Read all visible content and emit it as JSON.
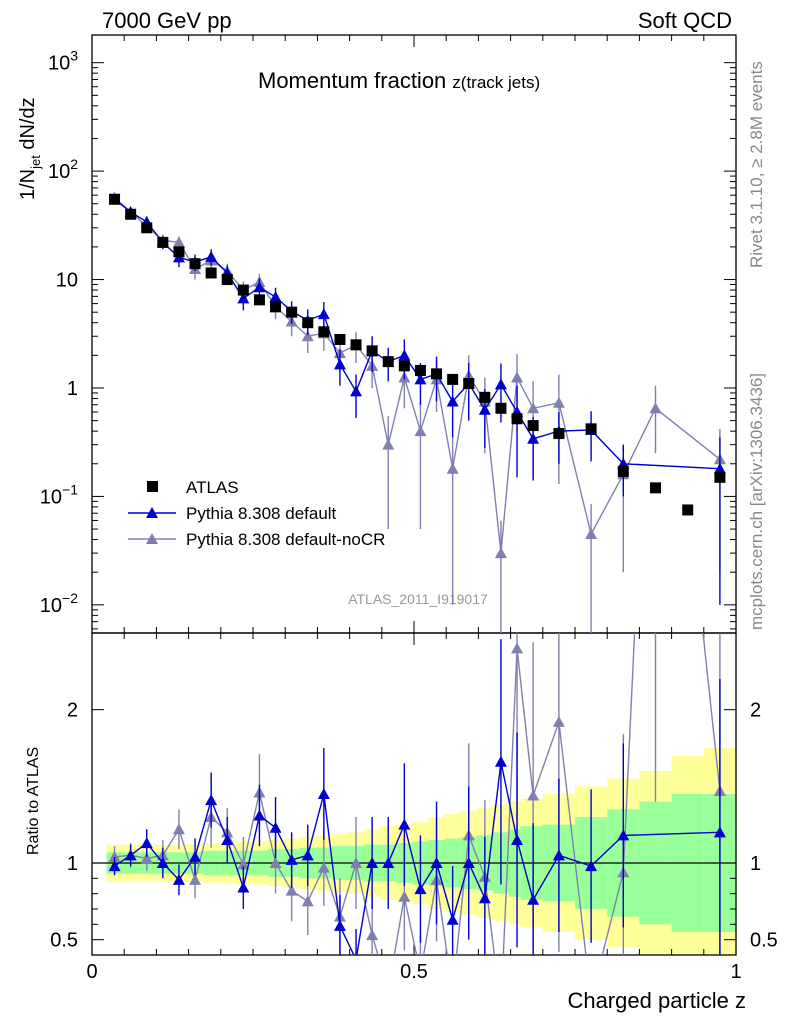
{
  "header": {
    "left": "7000 GeV pp",
    "right": "Soft QCD"
  },
  "side": {
    "top": "Rivet 3.1.10, ≥ 2.8M events",
    "bottom": "mcplots.cern.ch [arXiv:1306.3436]"
  },
  "chart_data": {
    "type": "scatter",
    "title": "Momentum fraction",
    "title_sub": "z(track jets)",
    "analysis_label": "ATLAS_2011_I919017",
    "xlabel": "Charged particle z",
    "ylabel_main": "1/N",
    "ylabel_sub": "jet",
    "ylabel_tail": " dN/dz",
    "ylabel_ratio": "Ratio to ATLAS",
    "xlim": [
      0,
      1
    ],
    "ylim_main": [
      0.0055,
      1800
    ],
    "ylim_ratio": [
      0.4,
      2.5
    ],
    "x_ticks": [
      "0",
      "0.5",
      "1"
    ],
    "x_tick_values": [
      0,
      0.5,
      1
    ],
    "y_ticks_main": [
      {
        "v": 1000,
        "base": "10",
        "exp": "3"
      },
      {
        "v": 100,
        "base": "10",
        "exp": "2"
      },
      {
        "v": 10,
        "base": "10",
        "exp": ""
      },
      {
        "v": 1,
        "base": "1",
        "exp": ""
      },
      {
        "v": 0.1,
        "base": "10",
        "exp": "−1"
      },
      {
        "v": 0.01,
        "base": "10",
        "exp": "−2"
      }
    ],
    "y_ticks_ratio": [
      {
        "v": 2,
        "label": "2"
      },
      {
        "v": 1,
        "label": "1"
      },
      {
        "v": 0.5,
        "label": "0.5"
      }
    ],
    "legend": [
      {
        "name": "ATLAS",
        "style": "data"
      },
      {
        "name": "Pythia 8.308 default",
        "style": "default"
      },
      {
        "name": "Pythia 8.308 default-noCR",
        "style": "nocr"
      }
    ],
    "colors": {
      "data": "#000000",
      "default": "#0000cc",
      "nocr": "#8080b0",
      "band_inner": "#99ff99",
      "band_outer": "#ffff99"
    },
    "atlas": {
      "x": [
        0.035,
        0.06,
        0.085,
        0.11,
        0.135,
        0.16,
        0.185,
        0.21,
        0.235,
        0.26,
        0.285,
        0.31,
        0.335,
        0.36,
        0.385,
        0.41,
        0.435,
        0.46,
        0.485,
        0.51,
        0.535,
        0.56,
        0.585,
        0.61,
        0.635,
        0.66,
        0.685,
        0.725,
        0.775,
        0.825,
        0.875,
        0.925,
        0.975
      ],
      "y": [
        55,
        40,
        30,
        22,
        18,
        14,
        11.5,
        10,
        8,
        6.5,
        5.6,
        5,
        4,
        3.3,
        2.8,
        2.5,
        2.2,
        1.75,
        1.6,
        1.45,
        1.35,
        1.2,
        1.1,
        0.82,
        0.65,
        0.52,
        0.45,
        0.38,
        0.42,
        0.17,
        0.12,
        0.075,
        0.15
      ]
    },
    "default": {
      "x": [
        0.035,
        0.06,
        0.085,
        0.11,
        0.135,
        0.16,
        0.185,
        0.21,
        0.235,
        0.26,
        0.285,
        0.31,
        0.335,
        0.36,
        0.385,
        0.41,
        0.435,
        0.46,
        0.485,
        0.51,
        0.535,
        0.56,
        0.585,
        0.61,
        0.635,
        0.66,
        0.685,
        0.725,
        0.775,
        0.825,
        0.975
      ],
      "y": [
        55,
        42,
        34,
        22,
        16,
        14.5,
        16.2,
        11.5,
        6.7,
        8.5,
        6.9,
        5.1,
        4.2,
        4.8,
        1.65,
        0.93,
        2.2,
        1.75,
        2.0,
        1.2,
        1.35,
        0.75,
        1.1,
        0.63,
        1.08,
        0.6,
        0.34,
        0.4,
        0.41,
        0.2,
        0.18
      ],
      "yerr": [
        5,
        4,
        4,
        3,
        3,
        2.5,
        2.8,
        2,
        1.5,
        1.8,
        1.5,
        1.2,
        1.1,
        1.4,
        0.6,
        0.4,
        0.8,
        0.6,
        0.8,
        0.5,
        0.6,
        0.4,
        0.6,
        0.35,
        0.6,
        0.45,
        0.2,
        0.2,
        0.2,
        0.1,
        0.17
      ]
    },
    "nocr": {
      "x": [
        0.035,
        0.06,
        0.085,
        0.11,
        0.135,
        0.16,
        0.185,
        0.21,
        0.235,
        0.26,
        0.285,
        0.31,
        0.335,
        0.36,
        0.385,
        0.41,
        0.435,
        0.46,
        0.485,
        0.51,
        0.535,
        0.56,
        0.585,
        0.61,
        0.635,
        0.66,
        0.685,
        0.725,
        0.775,
        0.825,
        0.875,
        0.975
      ],
      "y": [
        57,
        42,
        31,
        23,
        22,
        12.5,
        15,
        12,
        8,
        9.5,
        5.6,
        4.1,
        3,
        3.2,
        2.1,
        2.5,
        1.6,
        0.3,
        1.25,
        0.4,
        1.2,
        0.18,
        1.3,
        0.75,
        0.03,
        1.25,
        0.65,
        0.73,
        0.045,
        0.16,
        0.65,
        0.22
      ],
      "yerr": [
        5,
        4,
        3,
        3,
        3,
        2.5,
        2.5,
        2,
        1.6,
        1.8,
        1.3,
        1.1,
        0.9,
        1,
        0.7,
        0.8,
        0.6,
        0.25,
        0.6,
        0.35,
        0.6,
        0.17,
        0.7,
        0.5,
        0.03,
        0.8,
        0.5,
        0.6,
        0.04,
        0.14,
        0.4,
        0.2
      ]
    },
    "ratio_default": [
      0.98,
      1.05,
      1.13,
      1.0,
      0.89,
      1.04,
      1.41,
      1.15,
      0.84,
      1.31,
      1.23,
      1.02,
      1.05,
      1.45,
      0.59,
      0.37,
      1.0,
      1.0,
      1.25,
      0.83,
      1.0,
      0.63,
      1.0,
      0.77,
      1.66,
      1.15,
      0.76,
      1.05,
      0.98,
      1.18,
      1.2
    ],
    "ratio_default_err": [
      0.06,
      0.07,
      0.09,
      0.1,
      0.1,
      0.12,
      0.18,
      0.15,
      0.14,
      0.2,
      0.2,
      0.18,
      0.2,
      0.3,
      0.2,
      0.2,
      0.3,
      0.3,
      0.4,
      0.35,
      0.4,
      0.35,
      0.5,
      0.4,
      0.8,
      0.7,
      0.5,
      0.5,
      0.5,
      0.6,
      1.0
    ],
    "ratio_nocr": [
      1.04,
      1.05,
      1.03,
      1.05,
      1.22,
      0.89,
      1.3,
      1.2,
      0.99,
      1.46,
      1.0,
      0.82,
      0.75,
      0.97,
      0.65,
      1.0,
      0.53,
      0.17,
      0.78,
      0.28,
      0.89,
      0.15,
      1.18,
      0.91,
      0.05,
      2.4,
      1.44,
      1.92,
      0.11,
      0.94,
      5.4,
      1.47
    ],
    "ratio_nocr_err": [
      0.07,
      0.08,
      0.08,
      0.1,
      0.13,
      0.12,
      0.2,
      0.16,
      0.18,
      0.25,
      0.2,
      0.2,
      0.22,
      0.25,
      0.25,
      0.3,
      0.25,
      0.15,
      0.35,
      0.25,
      0.4,
      0.14,
      0.6,
      0.5,
      0.05,
      1.4,
      1.0,
      1.5,
      0.1,
      0.9,
      4.0,
      1.3
    ],
    "band_inner": [
      0.07,
      0.07,
      0.07,
      0.07,
      0.07,
      0.07,
      0.08,
      0.08,
      0.08,
      0.08,
      0.09,
      0.09,
      0.1,
      0.1,
      0.11,
      0.11,
      0.12,
      0.12,
      0.13,
      0.14,
      0.15,
      0.16,
      0.17,
      0.18,
      0.2,
      0.22,
      0.24,
      0.25,
      0.3,
      0.35,
      0.4,
      0.45,
      0.45
    ],
    "band_outer": [
      0.12,
      0.12,
      0.12,
      0.12,
      0.12,
      0.12,
      0.13,
      0.13,
      0.14,
      0.14,
      0.15,
      0.16,
      0.17,
      0.18,
      0.19,
      0.2,
      0.22,
      0.24,
      0.25,
      0.27,
      0.3,
      0.32,
      0.34,
      0.36,
      0.38,
      0.4,
      0.42,
      0.45,
      0.5,
      0.55,
      0.6,
      0.7,
      0.75
    ]
  }
}
